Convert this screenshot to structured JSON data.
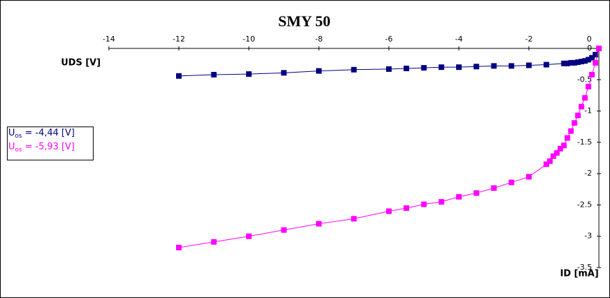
{
  "chart_data": {
    "type": "line",
    "title": "SMY 50",
    "xlabel": "UDS [V]",
    "ylabel": "ID [mA]",
    "xlim": [
      -14,
      0
    ],
    "xticks": [
      -14,
      -12,
      -10,
      -8,
      -6,
      -4,
      -2,
      0
    ],
    "ylim": [
      -3.5,
      0
    ],
    "yticks": [
      0,
      -0.5,
      -1,
      -1.5,
      -2,
      -2.5,
      -3,
      -3.5
    ],
    "legend": "left",
    "series": [
      {
        "name": "Uos = -4,44 [V]",
        "color": "#000080",
        "x": [
          -12,
          -11,
          -10,
          -9,
          -8,
          -7,
          -6,
          -5.5,
          -5,
          -4.5,
          -4,
          -3.5,
          -3,
          -2.5,
          -2,
          -1.5,
          -1,
          -0.9,
          -0.8,
          -0.7,
          -0.6,
          -0.5,
          -0.4,
          -0.3,
          -0.2,
          -0.1,
          0
        ],
        "values": [
          -0.44,
          -0.42,
          -0.41,
          -0.39,
          -0.36,
          -0.34,
          -0.33,
          -0.32,
          -0.31,
          -0.3,
          -0.3,
          -0.29,
          -0.28,
          -0.28,
          -0.27,
          -0.26,
          -0.24,
          -0.24,
          -0.23,
          -0.23,
          -0.22,
          -0.21,
          -0.2,
          -0.18,
          -0.15,
          -0.1,
          0
        ]
      },
      {
        "name": "Uos = -5,93 [V]",
        "color": "#ff00ff",
        "x": [
          -12,
          -11,
          -10,
          -9,
          -8,
          -7,
          -6,
          -5.5,
          -5,
          -4.5,
          -4,
          -3.5,
          -3,
          -2.5,
          -2,
          -1.5,
          -1.4,
          -1.3,
          -1.2,
          -1.1,
          -1,
          -0.9,
          -0.8,
          -0.7,
          -0.6,
          -0.5,
          -0.4,
          -0.3,
          -0.2,
          -0.1,
          0
        ],
        "values": [
          -3.18,
          -3.09,
          -3.0,
          -2.9,
          -2.8,
          -2.72,
          -2.6,
          -2.55,
          -2.49,
          -2.45,
          -2.37,
          -2.31,
          -2.23,
          -2.14,
          -2.05,
          -1.85,
          -1.8,
          -1.72,
          -1.67,
          -1.6,
          -1.55,
          -1.43,
          -1.32,
          -1.19,
          -1.07,
          -0.93,
          -0.79,
          -0.61,
          -0.42,
          -0.23,
          0
        ]
      }
    ]
  }
}
